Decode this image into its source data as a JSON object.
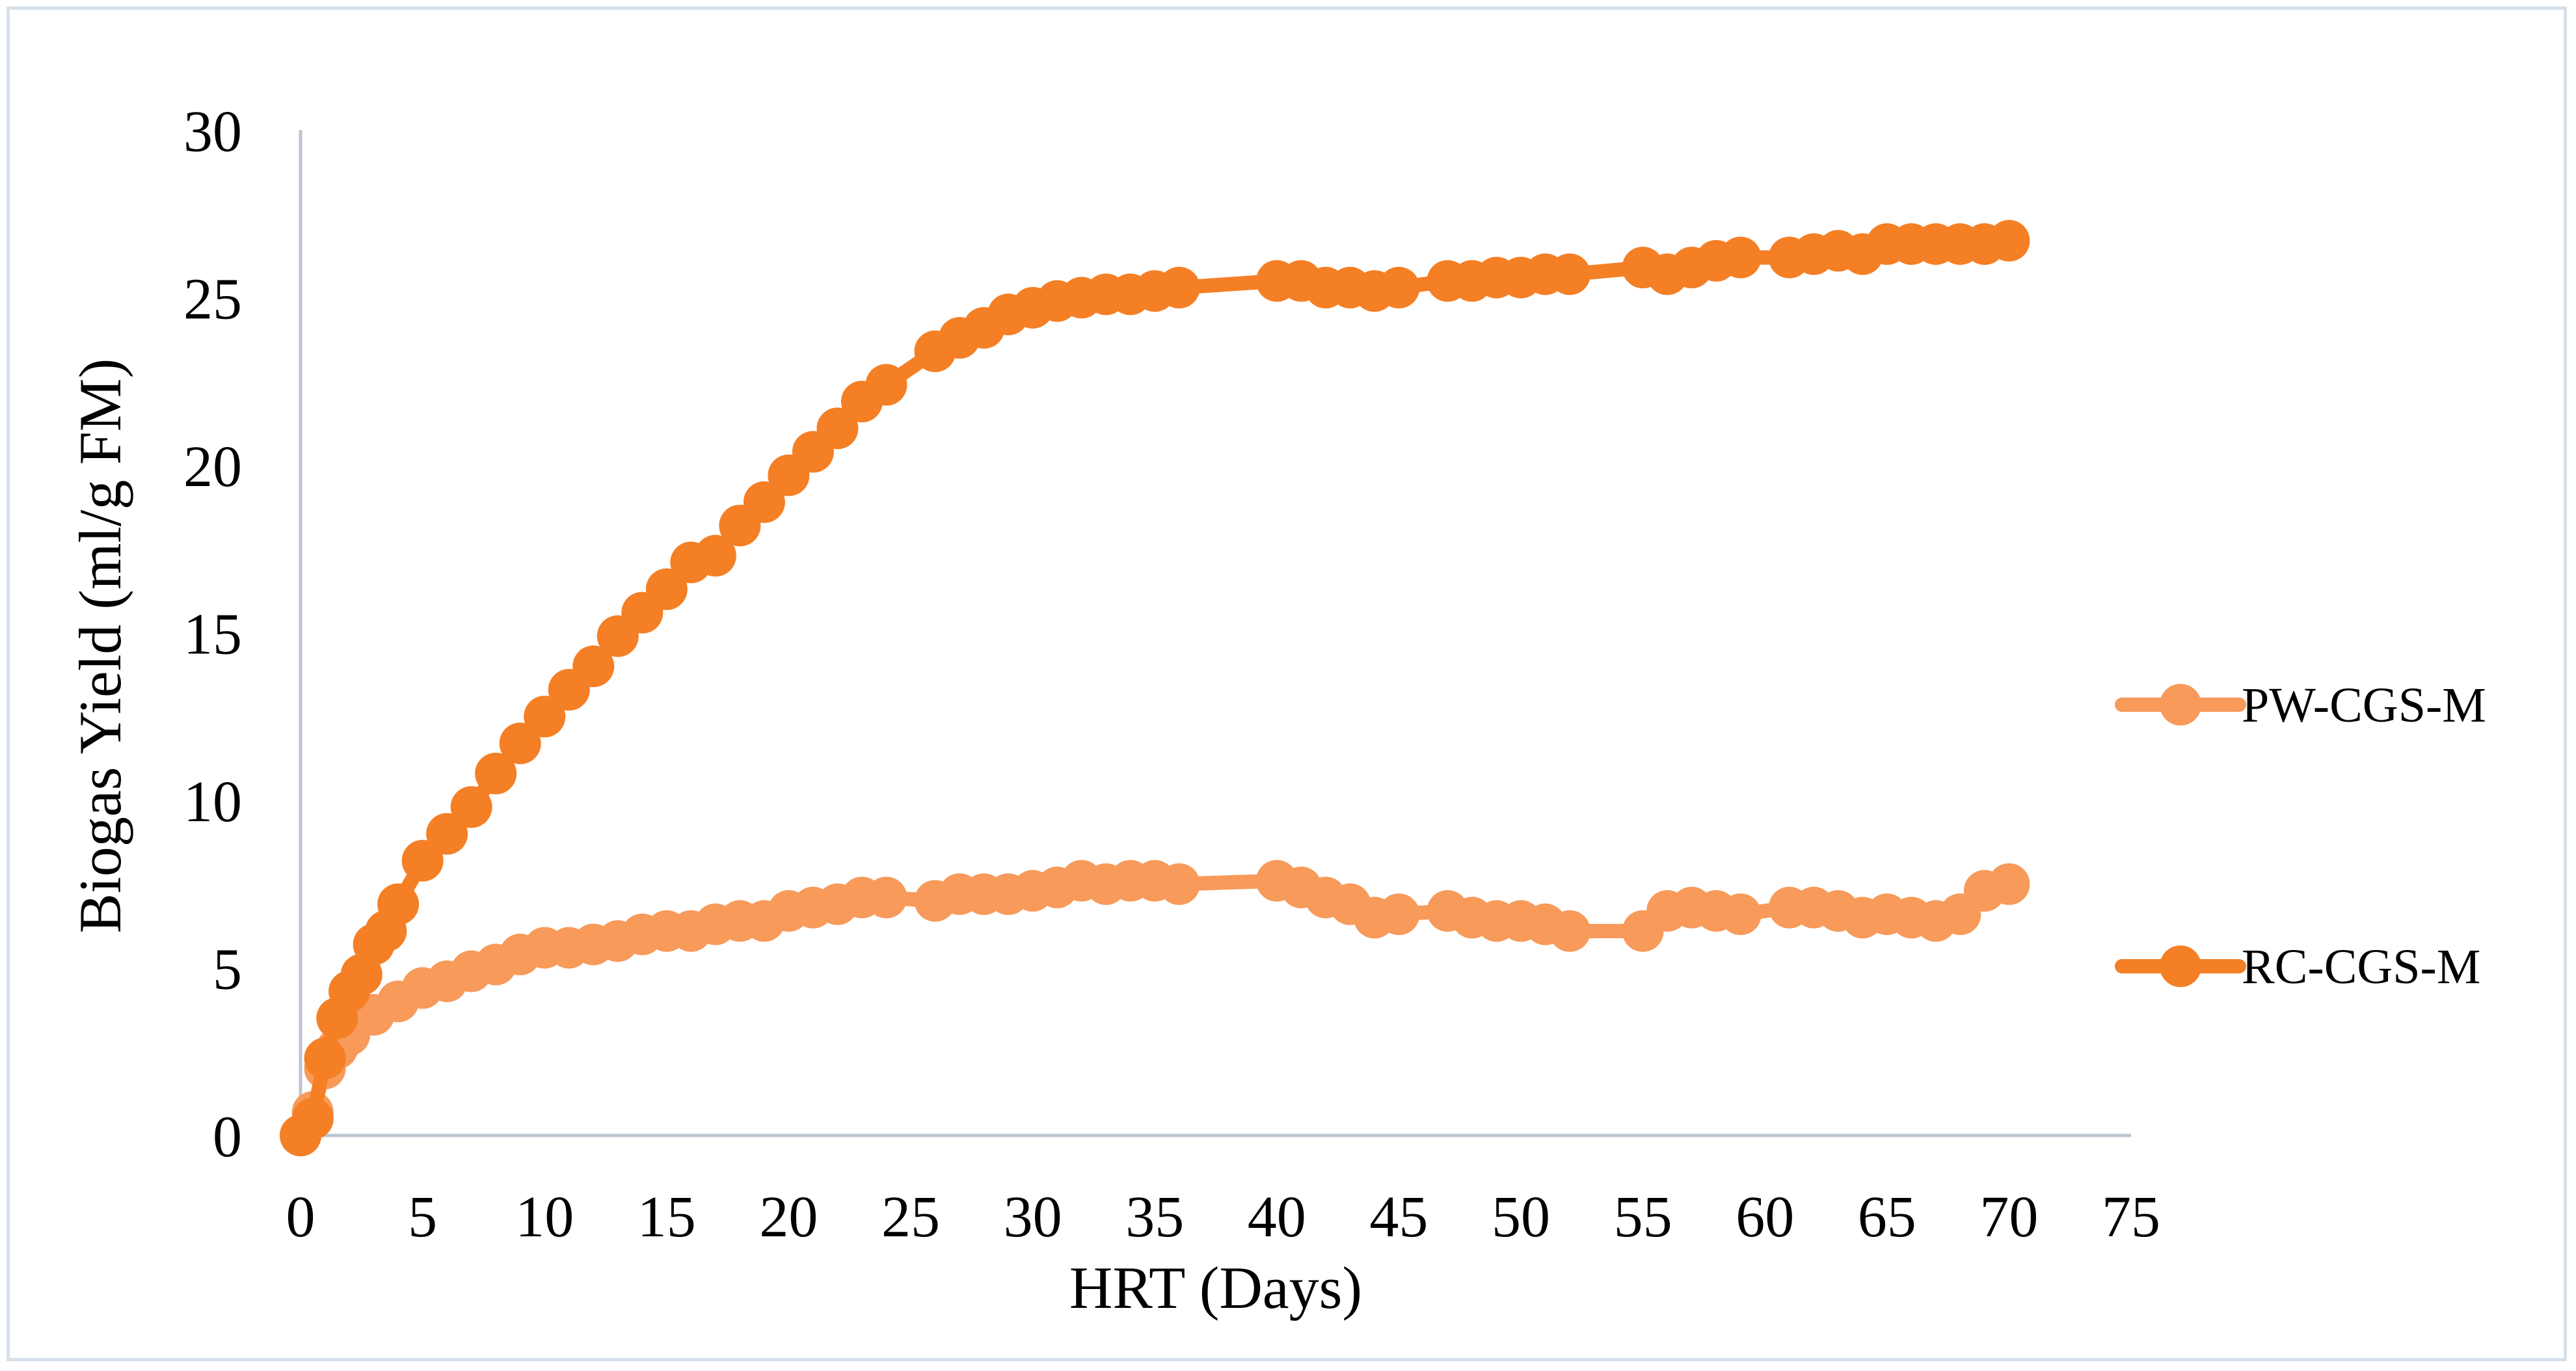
{
  "chart_data": {
    "type": "line",
    "title": "",
    "xlabel": "HRT (Days)",
    "ylabel": "Biogas Yield (ml/g FM)",
    "xlim": [
      0,
      75
    ],
    "ylim": [
      0,
      30
    ],
    "x_ticks": [
      "0",
      "5",
      "10",
      "15",
      "20",
      "25",
      "30",
      "35",
      "40",
      "45",
      "50",
      "55",
      "60",
      "65",
      "70",
      "75"
    ],
    "y_ticks": [
      "0",
      "5",
      "10",
      "15",
      "20",
      "25",
      "30"
    ],
    "grid": false,
    "legend_position": "right",
    "series": [
      {
        "name": "PW-CGS-M",
        "color": "#f79a5a",
        "points": [
          [
            0,
            0
          ],
          [
            0.5,
            0.7
          ],
          [
            1,
            2.0
          ],
          [
            1.5,
            2.6
          ],
          [
            2,
            3.0
          ],
          [
            3,
            3.6
          ],
          [
            4,
            4.0
          ],
          [
            5,
            4.4
          ],
          [
            6,
            4.6
          ],
          [
            7,
            4.9
          ],
          [
            8,
            5.1
          ],
          [
            9,
            5.4
          ],
          [
            10,
            5.6
          ],
          [
            11,
            5.6
          ],
          [
            12,
            5.7
          ],
          [
            13,
            5.8
          ],
          [
            14,
            6.0
          ],
          [
            15,
            6.1
          ],
          [
            16,
            6.1
          ],
          [
            17,
            6.3
          ],
          [
            18,
            6.4
          ],
          [
            19,
            6.4
          ],
          [
            20,
            6.7
          ],
          [
            21,
            6.8
          ],
          [
            22,
            6.9
          ],
          [
            23,
            7.1
          ],
          [
            24,
            7.1
          ],
          [
            26,
            7.0
          ],
          [
            27,
            7.2
          ],
          [
            28,
            7.2
          ],
          [
            29,
            7.2
          ],
          [
            30,
            7.3
          ],
          [
            31,
            7.4
          ],
          [
            32,
            7.6
          ],
          [
            33,
            7.5
          ],
          [
            34,
            7.6
          ],
          [
            35,
            7.6
          ],
          [
            36,
            7.5
          ],
          [
            40,
            7.6
          ],
          [
            41,
            7.4
          ],
          [
            42,
            7.1
          ],
          [
            43,
            6.9
          ],
          [
            44,
            6.5
          ],
          [
            45,
            6.6
          ],
          [
            47,
            6.7
          ],
          [
            48,
            6.5
          ],
          [
            49,
            6.4
          ],
          [
            50,
            6.4
          ],
          [
            51,
            6.3
          ],
          [
            52,
            6.1
          ],
          [
            55,
            6.1
          ],
          [
            56,
            6.7
          ],
          [
            57,
            6.8
          ],
          [
            58,
            6.7
          ],
          [
            59,
            6.6
          ],
          [
            61,
            6.8
          ],
          [
            62,
            6.8
          ],
          [
            63,
            6.7
          ],
          [
            64,
            6.5
          ],
          [
            65,
            6.6
          ],
          [
            66,
            6.5
          ],
          [
            67,
            6.4
          ],
          [
            68,
            6.6
          ],
          [
            69,
            7.3
          ],
          [
            70,
            7.5
          ]
        ]
      },
      {
        "name": "RC-CGS-M",
        "color": "#f47f25",
        "points": [
          [
            0,
            0
          ],
          [
            0.5,
            0.5
          ],
          [
            1,
            2.3
          ],
          [
            1.5,
            3.5
          ],
          [
            2,
            4.3
          ],
          [
            2.5,
            4.8
          ],
          [
            3,
            5.7
          ],
          [
            3.5,
            6.1
          ],
          [
            4,
            6.9
          ],
          [
            5,
            8.2
          ],
          [
            6,
            9.0
          ],
          [
            7,
            9.8
          ],
          [
            8,
            10.8
          ],
          [
            9,
            11.7
          ],
          [
            10,
            12.5
          ],
          [
            11,
            13.3
          ],
          [
            12,
            14.0
          ],
          [
            13,
            14.9
          ],
          [
            14,
            15.6
          ],
          [
            15,
            16.3
          ],
          [
            16,
            17.1
          ],
          [
            17,
            17.3
          ],
          [
            18,
            18.2
          ],
          [
            19,
            18.9
          ],
          [
            20,
            19.7
          ],
          [
            21,
            20.4
          ],
          [
            22,
            21.1
          ],
          [
            23,
            21.9
          ],
          [
            24,
            22.4
          ],
          [
            26,
            23.4
          ],
          [
            27,
            23.8
          ],
          [
            28,
            24.1
          ],
          [
            29,
            24.5
          ],
          [
            30,
            24.7
          ],
          [
            31,
            24.9
          ],
          [
            32,
            25.0
          ],
          [
            33,
            25.1
          ],
          [
            34,
            25.1
          ],
          [
            35,
            25.2
          ],
          [
            36,
            25.3
          ],
          [
            40,
            25.5
          ],
          [
            41,
            25.5
          ],
          [
            42,
            25.3
          ],
          [
            43,
            25.3
          ],
          [
            44,
            25.2
          ],
          [
            45,
            25.3
          ],
          [
            47,
            25.5
          ],
          [
            48,
            25.5
          ],
          [
            49,
            25.6
          ],
          [
            50,
            25.6
          ],
          [
            51,
            25.7
          ],
          [
            52,
            25.7
          ],
          [
            55,
            25.9
          ],
          [
            56,
            25.7
          ],
          [
            57,
            25.9
          ],
          [
            58,
            26.1
          ],
          [
            59,
            26.2
          ],
          [
            61,
            26.2
          ],
          [
            62,
            26.3
          ],
          [
            63,
            26.4
          ],
          [
            64,
            26.3
          ],
          [
            65,
            26.6
          ],
          [
            66,
            26.6
          ],
          [
            67,
            26.6
          ],
          [
            68,
            26.6
          ],
          [
            69,
            26.6
          ],
          [
            70,
            26.7
          ]
        ]
      }
    ]
  }
}
